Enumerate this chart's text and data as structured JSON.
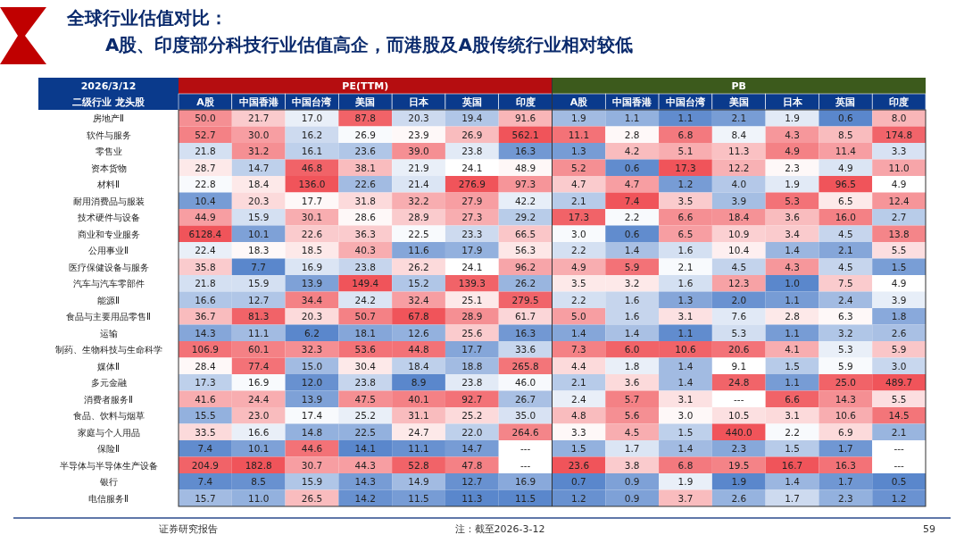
{
  "chart_data": {
    "type": "heatmap",
    "title": "全球行业估值对比：",
    "subtitle": "A股、印度部分科技行业估值高企，而港股及A股传统行业相对较低",
    "ylabel": "二级行业 龙头股",
    "annotations": [
      "PE(TTM)",
      "PB",
      "2026/3/12",
      "证券研究报告",
      "注：截至2026-3-12",
      "59"
    ],
    "categories": [
      "A股",
      "中国香港",
      "中国台湾",
      "美国",
      "日本",
      "英国",
      "印度",
      "A股",
      "中国香港",
      "中国台湾",
      "美国",
      "日本",
      "英国",
      "印度"
    ],
    "y_categories": [
      "房地产Ⅱ",
      "软件与服务",
      "零售业",
      "资本货物",
      "材料Ⅱ",
      "耐用消费品与服装",
      "技术硬件与设备",
      "商业和专业服务",
      "公用事业Ⅱ",
      "医疗保健设备与服务",
      "汽车与汽车零部件",
      "能源Ⅱ",
      "食品与主要用品零售Ⅱ",
      "运输",
      "制药、生物科技与生命科学",
      "媒体Ⅱ",
      "多元金融",
      "消费者服务Ⅱ",
      "食品、饮料与烟草",
      "家庭与个人用品",
      "保险Ⅱ",
      "半导体与半导体生产设备",
      "银行",
      "电信服务Ⅱ"
    ],
    "cells": [
      [
        50.0,
        21.7,
        17.0,
        87.8,
        20.3,
        19.4,
        91.6,
        1.9,
        1.1,
        1.1,
        2.1,
        1.9,
        0.6,
        8.0
      ],
      [
        52.7,
        30.0,
        16.2,
        26.9,
        23.9,
        26.9,
        562.1,
        11.1,
        2.8,
        6.8,
        8.4,
        4.3,
        8.5,
        174.8
      ],
      [
        21.8,
        31.2,
        16.1,
        23.6,
        39.0,
        23.8,
        16.3,
        1.3,
        4.2,
        5.1,
        11.3,
        4.9,
        11.4,
        3.3
      ],
      [
        28.7,
        14.7,
        46.8,
        38.1,
        21.9,
        24.1,
        48.9,
        5.2,
        0.6,
        17.3,
        12.2,
        2.3,
        4.9,
        11.0
      ],
      [
        22.8,
        18.4,
        136.0,
        22.6,
        21.4,
        276.9,
        97.3,
        4.7,
        4.7,
        1.2,
        4.0,
        1.9,
        96.5,
        4.9
      ],
      [
        10.4,
        20.3,
        17.7,
        31.8,
        32.2,
        27.9,
        42.2,
        2.1,
        7.4,
        3.5,
        3.9,
        5.3,
        6.5,
        12.4
      ],
      [
        44.9,
        15.9,
        30.1,
        28.6,
        28.9,
        27.3,
        29.2,
        17.3,
        2.2,
        6.6,
        18.4,
        3.6,
        16.0,
        2.7
      ],
      [
        6128.4,
        10.1,
        22.6,
        36.3,
        22.5,
        23.3,
        66.5,
        3.0,
        0.6,
        6.5,
        10.9,
        3.4,
        4.5,
        13.8
      ],
      [
        22.4,
        18.3,
        18.5,
        40.3,
        11.6,
        17.9,
        56.3,
        2.2,
        1.4,
        1.6,
        10.4,
        1.4,
        2.1,
        5.5
      ],
      [
        35.8,
        7.7,
        16.9,
        23.8,
        26.2,
        24.1,
        96.2,
        4.9,
        5.9,
        2.1,
        4.5,
        4.3,
        4.5,
        1.5
      ],
      [
        21.8,
        15.9,
        13.9,
        149.4,
        15.2,
        139.3,
        26.2,
        3.5,
        3.2,
        1.6,
        12.3,
        1.0,
        7.5,
        4.9
      ],
      [
        16.6,
        12.7,
        34.4,
        24.2,
        32.4,
        25.1,
        279.5,
        2.2,
        1.6,
        1.3,
        2.0,
        1.1,
        2.4,
        3.9
      ],
      [
        36.7,
        81.3,
        20.3,
        50.7,
        67.8,
        28.9,
        61.7,
        5.0,
        1.6,
        3.1,
        7.6,
        2.8,
        6.3,
        1.8
      ],
      [
        14.3,
        11.1,
        6.2,
        18.1,
        12.6,
        25.6,
        16.3,
        1.4,
        1.4,
        1.1,
        5.3,
        1.1,
        3.2,
        2.6
      ],
      [
        106.9,
        60.1,
        32.3,
        53.6,
        44.8,
        17.7,
        33.6,
        7.3,
        6.0,
        10.6,
        20.6,
        4.1,
        5.3,
        5.9
      ],
      [
        28.4,
        77.4,
        15.0,
        30.4,
        18.4,
        18.8,
        265.8,
        4.4,
        1.8,
        1.4,
        9.1,
        1.5,
        5.9,
        3.0
      ],
      [
        17.3,
        16.9,
        12.0,
        23.8,
        8.9,
        23.8,
        46.0,
        2.1,
        3.6,
        1.4,
        24.8,
        1.1,
        25.0,
        489.7
      ],
      [
        41.6,
        24.4,
        13.9,
        47.5,
        40.1,
        92.7,
        26.7,
        2.4,
        5.7,
        3.1,
        null,
        6.6,
        14.3,
        5.5
      ],
      [
        15.5,
        23.0,
        17.4,
        25.2,
        31.1,
        25.2,
        35.0,
        4.8,
        5.6,
        3.0,
        10.5,
        3.1,
        10.6,
        14.5
      ],
      [
        33.5,
        16.6,
        14.8,
        22.5,
        24.7,
        22.0,
        264.6,
        3.3,
        4.5,
        1.5,
        440.0,
        2.2,
        6.9,
        2.1
      ],
      [
        7.4,
        10.1,
        44.6,
        14.1,
        11.1,
        14.7,
        null,
        1.5,
        1.7,
        1.4,
        2.3,
        1.5,
        1.7,
        null
      ],
      [
        204.9,
        182.8,
        30.7,
        44.3,
        52.8,
        47.8,
        null,
        23.6,
        3.8,
        6.8,
        19.5,
        16.7,
        16.3,
        null
      ],
      [
        7.4,
        8.5,
        15.9,
        14.3,
        14.9,
        12.7,
        16.9,
        0.7,
        0.9,
        1.9,
        1.9,
        1.4,
        1.7,
        0.5
      ],
      [
        15.7,
        11.0,
        26.5,
        14.2,
        11.5,
        11.3,
        11.5,
        1.2,
        0.9,
        3.7,
        2.6,
        1.7,
        2.3,
        1.2
      ]
    ],
    "cell_labels": [
      [
        "50.0",
        "21.7",
        "17.0",
        "87.8",
        "20.3",
        "19.4",
        "91.6",
        "1.9",
        "1.1",
        "1.1",
        "2.1",
        "1.9",
        "0.6",
        "8.0"
      ],
      [
        "52.7",
        "30.0",
        "16.2",
        "26.9",
        "23.9",
        "26.9",
        "562.1",
        "11.1",
        "2.8",
        "6.8",
        "8.4",
        "4.3",
        "8.5",
        "174.8"
      ],
      [
        "21.8",
        "31.2",
        "16.1",
        "23.6",
        "39.0",
        "23.8",
        "16.3",
        "1.3",
        "4.2",
        "5.1",
        "11.3",
        "4.9",
        "11.4",
        "3.3"
      ],
      [
        "28.7",
        "14.7",
        "46.8",
        "38.1",
        "21.9",
        "24.1",
        "48.9",
        "5.2",
        "0.6",
        "17.3",
        "12.2",
        "2.3",
        "4.9",
        "11.0"
      ],
      [
        "22.8",
        "18.4",
        "136.0",
        "22.6",
        "21.4",
        "276.9",
        "97.3",
        "4.7",
        "4.7",
        "1.2",
        "4.0",
        "1.9",
        "96.5",
        "4.9"
      ],
      [
        "10.4",
        "20.3",
        "17.7",
        "31.8",
        "32.2",
        "27.9",
        "42.2",
        "2.1",
        "7.4",
        "3.5",
        "3.9",
        "5.3",
        "6.5",
        "12.4"
      ],
      [
        "44.9",
        "15.9",
        "30.1",
        "28.6",
        "28.9",
        "27.3",
        "29.2",
        "17.3",
        "2.2",
        "6.6",
        "18.4",
        "3.6",
        "16.0",
        "2.7"
      ],
      [
        "6128.4",
        "10.1",
        "22.6",
        "36.3",
        "22.5",
        "23.3",
        "66.5",
        "3.0",
        "0.6",
        "6.5",
        "10.9",
        "3.4",
        "4.5",
        "13.8"
      ],
      [
        "22.4",
        "18.3",
        "18.5",
        "40.3",
        "11.6",
        "17.9",
        "56.3",
        "2.2",
        "1.4",
        "1.6",
        "10.4",
        "1.4",
        "2.1",
        "5.5"
      ],
      [
        "35.8",
        "7.7",
        "16.9",
        "23.8",
        "26.2",
        "24.1",
        "96.2",
        "4.9",
        "5.9",
        "2.1",
        "4.5",
        "4.3",
        "4.5",
        "1.5"
      ],
      [
        "21.8",
        "15.9",
        "13.9",
        "149.4",
        "15.2",
        "139.3",
        "26.2",
        "3.5",
        "3.2",
        "1.6",
        "12.3",
        "1.0",
        "7.5",
        "4.9"
      ],
      [
        "16.6",
        "12.7",
        "34.4",
        "24.2",
        "32.4",
        "25.1",
        "279.5",
        "2.2",
        "1.6",
        "1.3",
        "2.0",
        "1.1",
        "2.4",
        "3.9"
      ],
      [
        "36.7",
        "81.3",
        "20.3",
        "50.7",
        "67.8",
        "28.9",
        "61.7",
        "5.0",
        "1.6",
        "3.1",
        "7.6",
        "2.8",
        "6.3",
        "1.8"
      ],
      [
        "14.3",
        "11.1",
        "6.2",
        "18.1",
        "12.6",
        "25.6",
        "16.3",
        "1.4",
        "1.4",
        "1.1",
        "5.3",
        "1.1",
        "3.2",
        "2.6"
      ],
      [
        "106.9",
        "60.1",
        "32.3",
        "53.6",
        "44.8",
        "17.7",
        "33.6",
        "7.3",
        "6.0",
        "10.6",
        "20.6",
        "4.1",
        "5.3",
        "5.9"
      ],
      [
        "28.4",
        "77.4",
        "15.0",
        "30.4",
        "18.4",
        "18.8",
        "265.8",
        "4.4",
        "1.8",
        "1.4",
        "9.1",
        "1.5",
        "5.9",
        "3.0"
      ],
      [
        "17.3",
        "16.9",
        "12.0",
        "23.8",
        "8.9",
        "23.8",
        "46.0",
        "2.1",
        "3.6",
        "1.4",
        "24.8",
        "1.1",
        "25.0",
        "489.7"
      ],
      [
        "41.6",
        "24.4",
        "13.9",
        "47.5",
        "40.1",
        "92.7",
        "26.7",
        "2.4",
        "5.7",
        "3.1",
        "---",
        "6.6",
        "14.3",
        "5.5"
      ],
      [
        "15.5",
        "23.0",
        "17.4",
        "25.2",
        "31.1",
        "25.2",
        "35.0",
        "4.8",
        "5.6",
        "3.0",
        "10.5",
        "3.1",
        "10.6",
        "14.5"
      ],
      [
        "33.5",
        "16.6",
        "14.8",
        "22.5",
        "24.7",
        "22.0",
        "264.6",
        "3.3",
        "4.5",
        "1.5",
        "440.0",
        "2.2",
        "6.9",
        "2.1"
      ],
      [
        "7.4",
        "10.1",
        "44.6",
        "14.1",
        "11.1",
        "14.7",
        "---",
        "1.5",
        "1.7",
        "1.4",
        "2.3",
        "1.5",
        "1.7",
        "---"
      ],
      [
        "204.9",
        "182.8",
        "30.7",
        "44.3",
        "52.8",
        "47.8",
        "---",
        "23.6",
        "3.8",
        "6.8",
        "19.5",
        "16.7",
        "16.3",
        "---"
      ],
      [
        "7.4",
        "8.5",
        "15.9",
        "14.3",
        "14.9",
        "12.7",
        "16.9",
        "0.7",
        "0.9",
        "1.9",
        "1.9",
        "1.4",
        "1.7",
        "0.5"
      ],
      [
        "15.7",
        "11.0",
        "26.5",
        "14.2",
        "11.5",
        "11.3",
        "11.5",
        "1.2",
        "0.9",
        "3.7",
        "2.6",
        "1.7",
        "2.3",
        "1.2"
      ]
    ]
  }
}
